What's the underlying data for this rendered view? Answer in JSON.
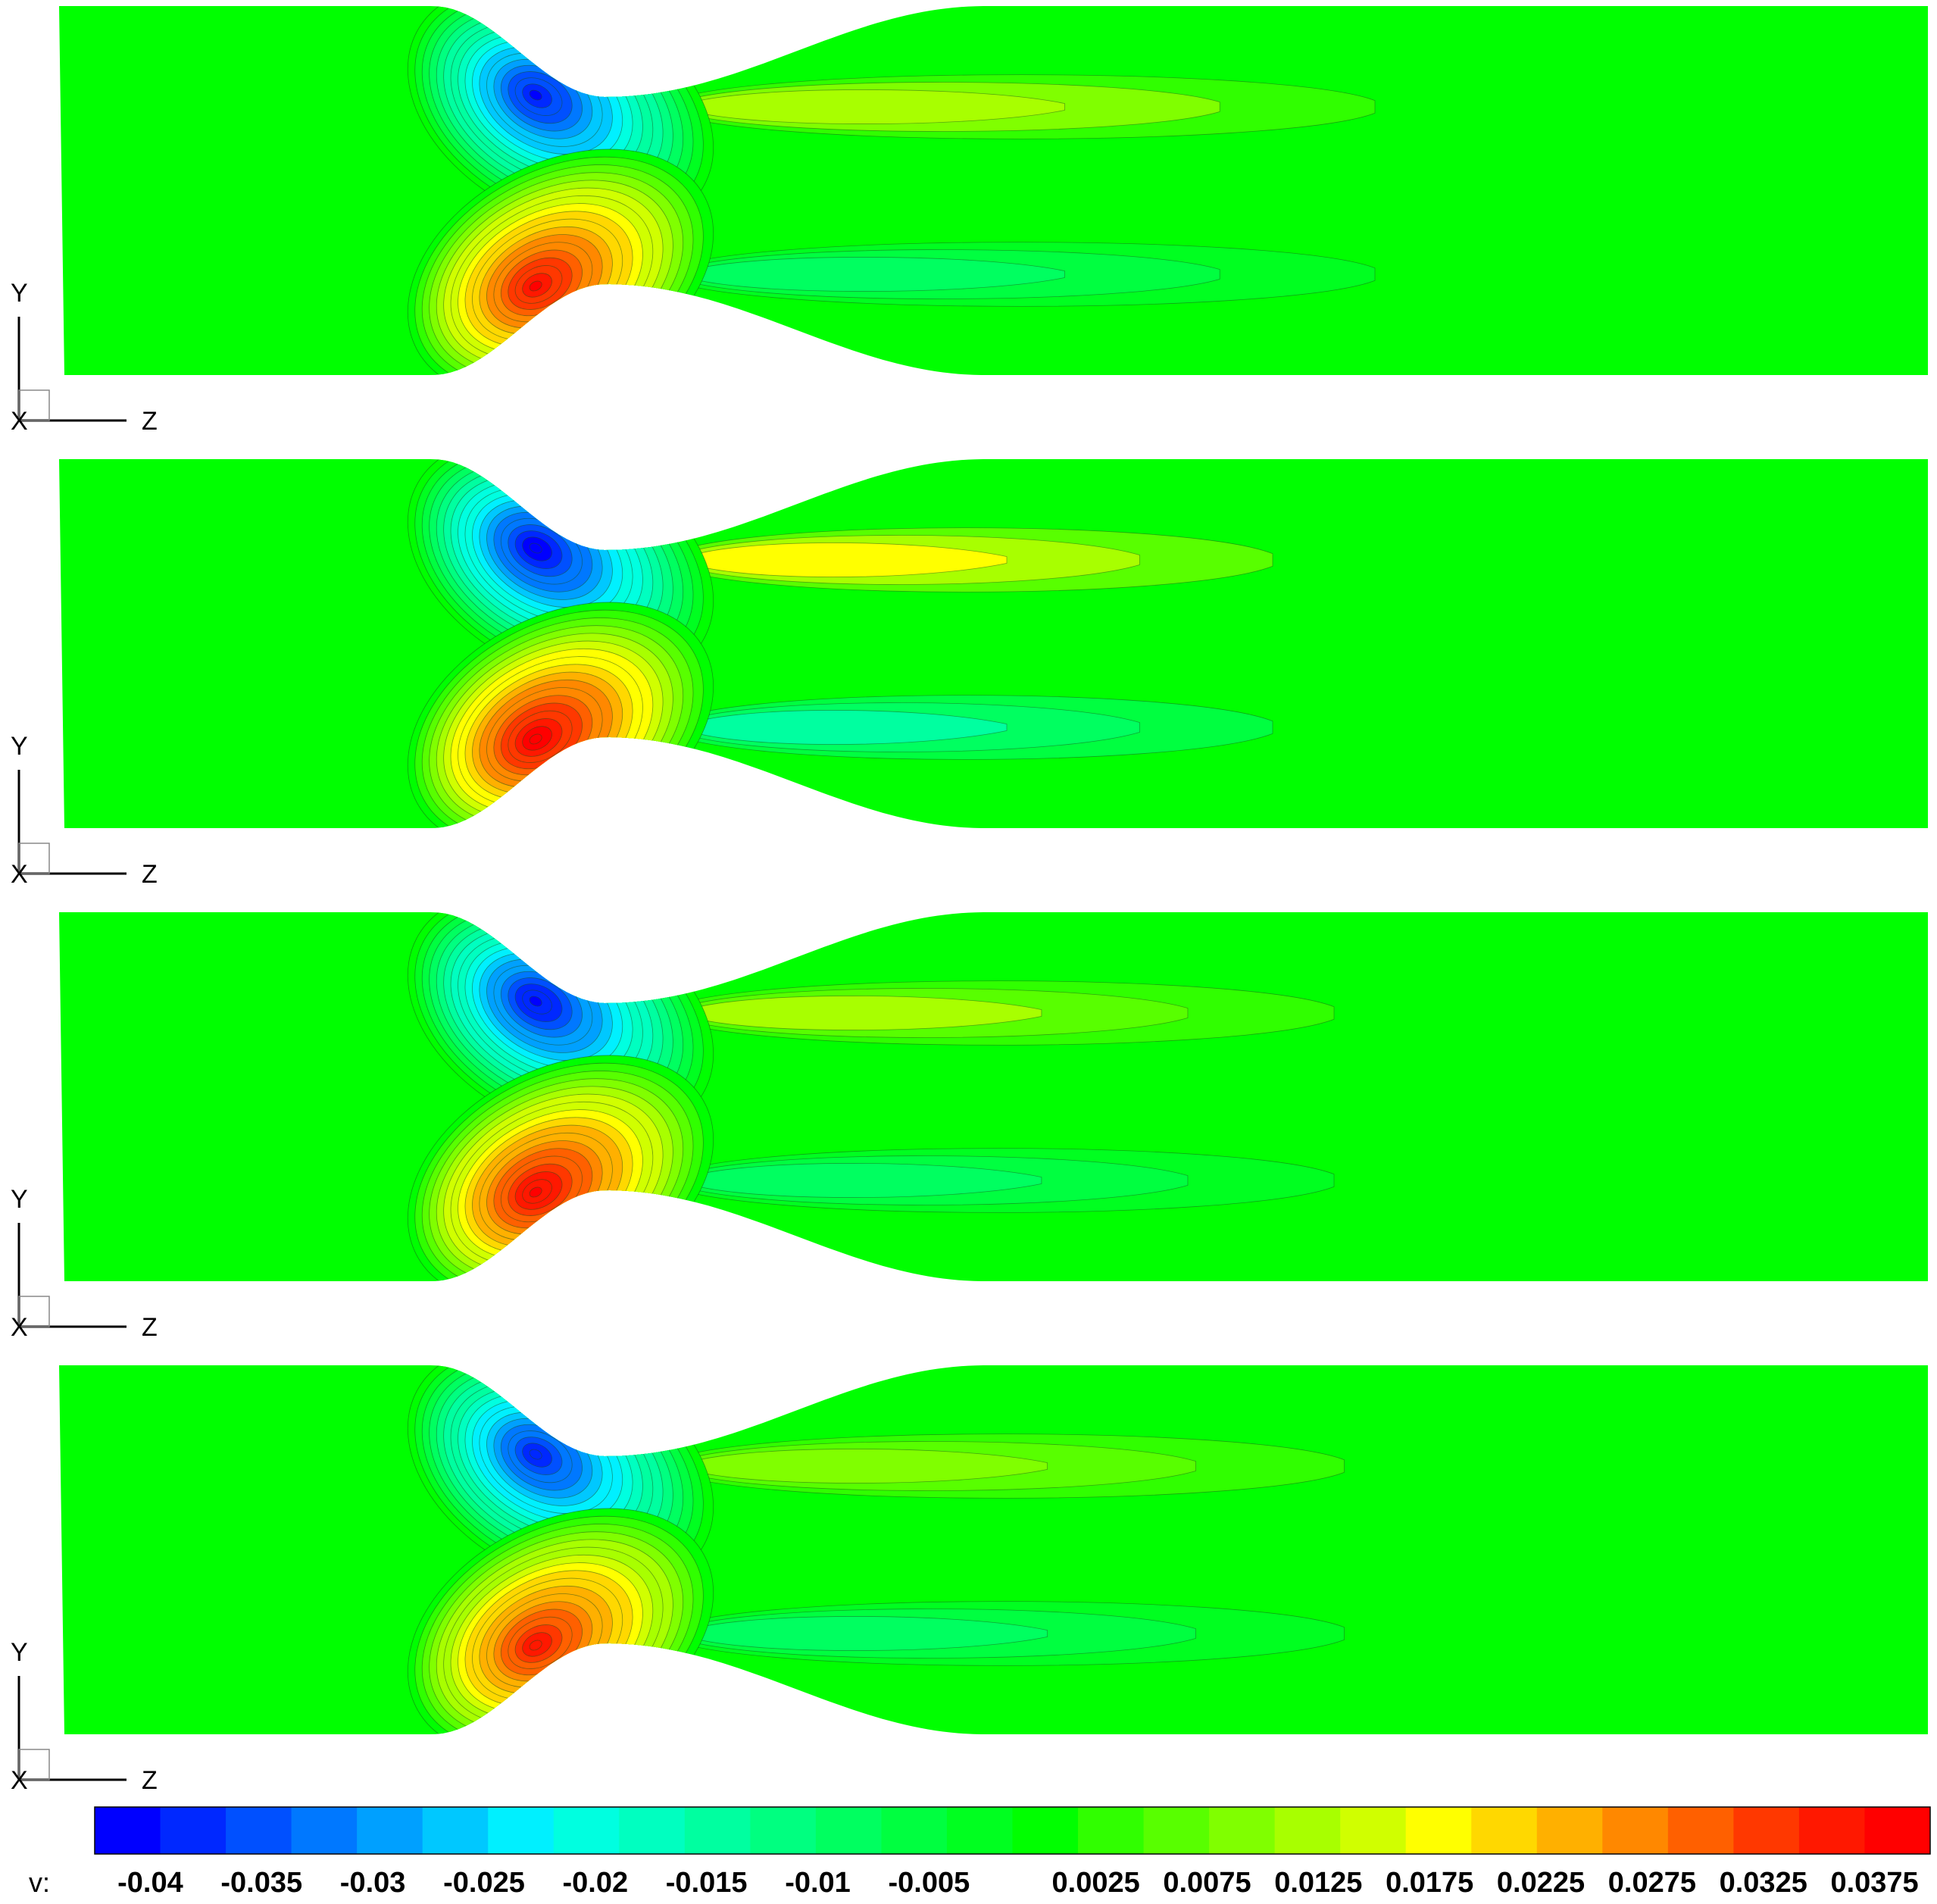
{
  "chart_data": {
    "type": "contour",
    "variable_label": "v:",
    "colorbar": {
      "min": -0.0425,
      "max": 0.04,
      "step": 0.0025,
      "tick_labels": [
        "-0.04",
        "-0.035",
        "-0.03",
        "-0.025",
        "-0.02",
        "-0.015",
        "-0.01",
        "-0.005",
        "0.0025",
        "0.0075",
        "0.0125",
        "0.0175",
        "0.0225",
        "0.0275",
        "0.0325",
        "0.0375"
      ],
      "tick_values": [
        -0.04,
        -0.035,
        -0.03,
        -0.025,
        -0.02,
        -0.015,
        -0.01,
        -0.005,
        0.0025,
        0.0075,
        0.0125,
        0.0175,
        0.0225,
        0.0275,
        0.0325,
        0.0375
      ],
      "colors": [
        "#0000ff",
        "#0028ff",
        "#0050ff",
        "#0078ff",
        "#00a0ff",
        "#00c8ff",
        "#00f0ff",
        "#00ffe0",
        "#00ffc0",
        "#00ffa0",
        "#00ff80",
        "#00ff60",
        "#00ff40",
        "#00ff20",
        "#00ff00",
        "#30ff00",
        "#58ff00",
        "#80ff00",
        "#a8ff00",
        "#d0ff00",
        "#ffff00",
        "#ffd800",
        "#ffb000",
        "#ff8800",
        "#ff6000",
        "#ff3800",
        "#ff1800",
        "#ff0000"
      ]
    },
    "panels": [
      {
        "axes": {
          "vertical": "Y",
          "horizontal": "Z",
          "normal": "X"
        },
        "negative_peak": -0.04,
        "positive_peak": 0.0375,
        "wake_value_upper": 0.012,
        "wake_value_lower": -0.009,
        "wake_extent": 0.7
      },
      {
        "axes": {
          "vertical": "Y",
          "horizontal": "Z",
          "normal": "X"
        },
        "negative_peak": -0.042,
        "positive_peak": 0.04,
        "wake_value_upper": 0.017,
        "wake_value_lower": -0.014,
        "wake_extent": 0.6
      },
      {
        "axes": {
          "vertical": "Y",
          "horizontal": "Z",
          "normal": "X"
        },
        "negative_peak": -0.041,
        "positive_peak": 0.038,
        "wake_value_upper": 0.011,
        "wake_value_lower": -0.009,
        "wake_extent": 0.66
      },
      {
        "axes": {
          "vertical": "Y",
          "horizontal": "Z",
          "normal": "X"
        },
        "negative_peak": -0.039,
        "positive_peak": 0.036,
        "wake_value_upper": 0.01,
        "wake_value_lower": -0.008,
        "wake_extent": 0.67
      }
    ]
  }
}
